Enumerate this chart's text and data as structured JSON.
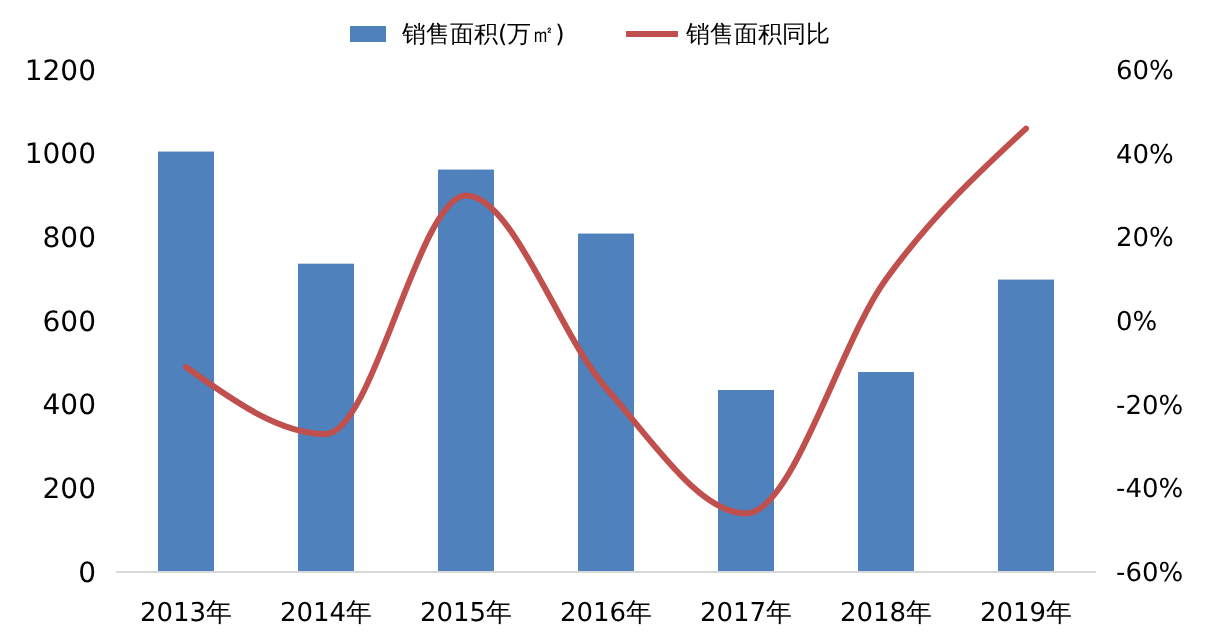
{
  "chart_data": {
    "type": "bar",
    "categories": [
      "2013年",
      "2014年",
      "2015年",
      "2016年",
      "2017年",
      "2018年",
      "2019年"
    ],
    "series": [
      {
        "name": "销售面积(万㎡)",
        "color": "#4f81bd",
        "values": [
          1005,
          737,
          962,
          809,
          435,
          478,
          699
        ]
      },
      {
        "name": "销售面积同比",
        "type": "line",
        "axis": "y2",
        "color": "#c0504d",
        "values": [
          -11,
          -27,
          30,
          -16,
          -46,
          10,
          46
        ]
      }
    ],
    "ylim": [
      0,
      1200
    ],
    "yticks": [
      0,
      200,
      400,
      600,
      800,
      1000,
      1200
    ],
    "y2lim": [
      -60,
      60
    ],
    "y2ticks": [
      {
        "value": -60,
        "label": "-60%"
      },
      {
        "value": -40,
        "label": "-40%"
      },
      {
        "value": -20,
        "label": "-20%"
      },
      {
        "value": 0,
        "label": "0%"
      },
      {
        "value": 20,
        "label": "20%"
      },
      {
        "value": 40,
        "label": "40%"
      },
      {
        "value": 60,
        "label": "60%"
      }
    ],
    "grid": false,
    "legend": "top",
    "marker": "none",
    "line_style": "solid"
  }
}
